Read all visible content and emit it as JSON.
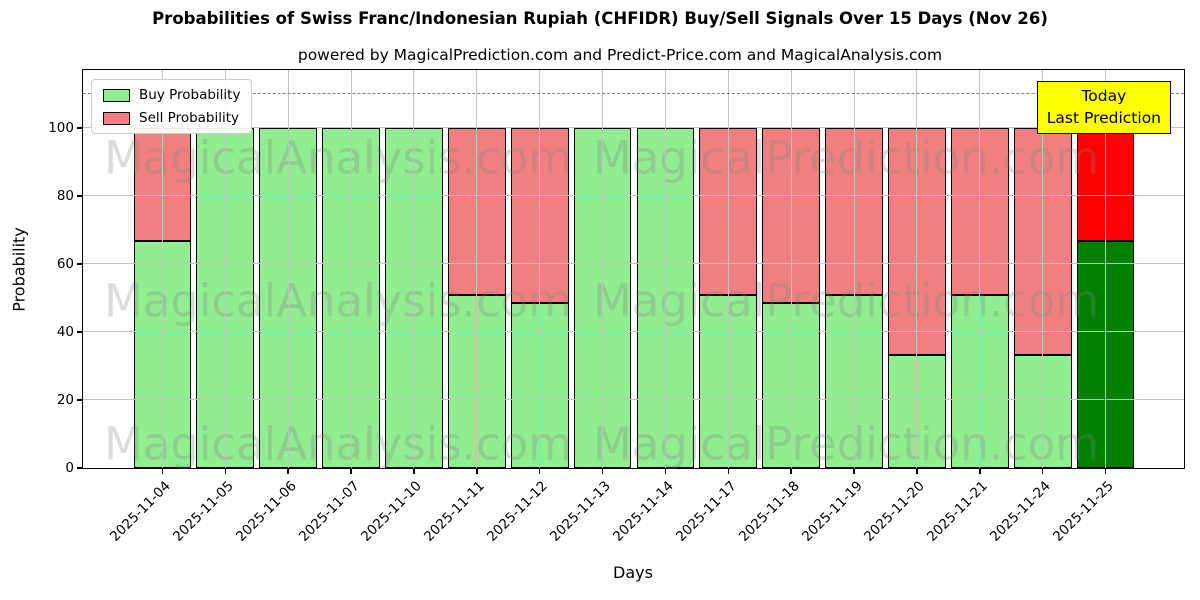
{
  "chart_data": {
    "type": "bar",
    "stacked": true,
    "title": "Probabilities of Swiss Franc/Indonesian Rupiah (CHFIDR) Buy/Sell Signals Over 15 Days (Nov 26)",
    "subtitle": "powered by MagicalPrediction.com and Predict-Price.com and MagicalAnalysis.com",
    "xlabel": "Days",
    "ylabel": "Probability",
    "ylim": [
      0,
      117
    ],
    "yticks": [
      0,
      20,
      40,
      60,
      80,
      100
    ],
    "grid": true,
    "legend_position": "upper left",
    "reference_line": {
      "y": 110,
      "style": "dashed",
      "color": "#7f7f7f"
    },
    "categories": [
      "2025-11-04",
      "2025-11-05",
      "2025-11-06",
      "2025-11-07",
      "2025-11-10",
      "2025-11-11",
      "2025-11-12",
      "2025-11-13",
      "2025-11-14",
      "2025-11-17",
      "2025-11-18",
      "2025-11-19",
      "2025-11-20",
      "2025-11-21",
      "2025-11-24",
      "2025-11-25"
    ],
    "series": [
      {
        "name": "Buy Probability",
        "color": "#90ee90",
        "today_color": "#008000",
        "values": [
          66.7,
          100,
          100,
          100,
          100,
          51,
          48.6,
          100,
          100,
          51,
          48.6,
          51,
          33.3,
          51,
          33.3,
          66.7
        ]
      },
      {
        "name": "Sell Probability",
        "color": "#f08080",
        "today_color": "#ff0000",
        "values": [
          33.3,
          0,
          0,
          0,
          0,
          49,
          51.4,
          0,
          0,
          49,
          51.4,
          49,
          66.7,
          49,
          66.7,
          33.3
        ]
      }
    ],
    "today_index": 15,
    "bar_edge_color": "#000000"
  },
  "legend": {
    "items": [
      {
        "label": "Buy Probability",
        "color": "#90ee90"
      },
      {
        "label": "Sell Probability",
        "color": "#f08080"
      }
    ]
  },
  "annotation": {
    "line1": "Today",
    "line2": "Last Prediction",
    "bg": "#ffff00"
  },
  "watermarks": {
    "left": "MagicalAnalysis.com",
    "right": "MagicalPrediction.com"
  }
}
